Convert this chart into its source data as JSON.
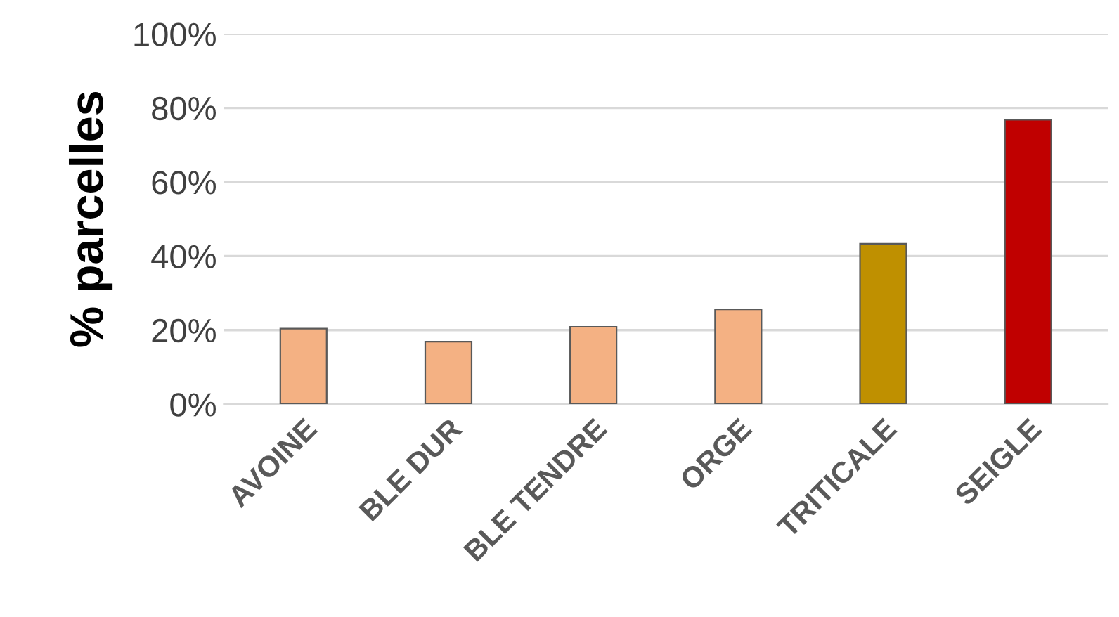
{
  "chart_data": {
    "type": "bar",
    "ylabel": "% parcelles",
    "categories": [
      "AVOINE",
      "BLE DUR",
      "BLE TENDRE",
      "ORGE",
      "TRITICALE",
      "SEIGLE"
    ],
    "values": [
      20.4,
      16.9,
      20.9,
      25.6,
      43.3,
      76.8
    ],
    "colors": [
      "#f4b183",
      "#f4b183",
      "#f4b183",
      "#f4b183",
      "#bf9000",
      "#c00000"
    ],
    "ylim": [
      0,
      100
    ],
    "yticks": [
      {
        "value": 0,
        "label": "0%"
      },
      {
        "value": 20,
        "label": "20%"
      },
      {
        "value": 40,
        "label": "40%"
      },
      {
        "value": 60,
        "label": "60%"
      },
      {
        "value": 80,
        "label": "80%"
      },
      {
        "value": 100,
        "label": "100%"
      }
    ],
    "grid": "y",
    "legend": false
  }
}
